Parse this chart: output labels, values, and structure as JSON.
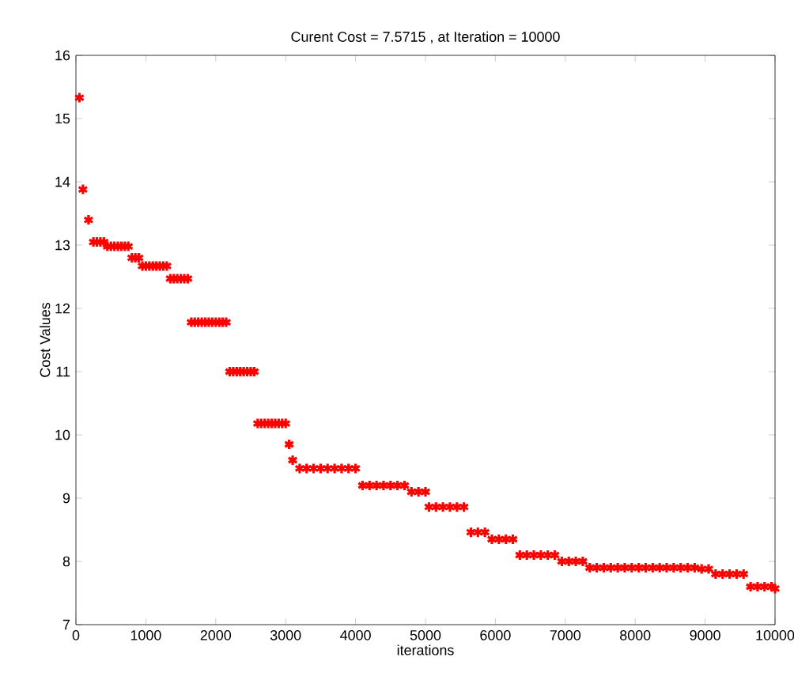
{
  "chart_data": {
    "type": "scatter",
    "title": "Curent Cost = 7.5715 , at Iteration = 10000",
    "xlabel": "iterations",
    "ylabel": "Cost Values",
    "xlim": [
      0,
      10000
    ],
    "ylim": [
      7,
      16
    ],
    "xticks": [
      0,
      1000,
      2000,
      3000,
      4000,
      5000,
      6000,
      7000,
      8000,
      9000,
      10000
    ],
    "yticks": [
      7,
      8,
      9,
      10,
      11,
      12,
      13,
      14,
      15,
      16
    ],
    "marker": "cross",
    "grid": false,
    "legend": false,
    "series": [
      {
        "color": "#ff0000",
        "x": [
          50,
          100,
          180,
          250,
          300,
          350,
          400,
          450,
          500,
          550,
          600,
          650,
          700,
          750,
          800,
          850,
          900,
          950,
          1000,
          1050,
          1100,
          1150,
          1200,
          1250,
          1300,
          1350,
          1400,
          1450,
          1500,
          1550,
          1600,
          1650,
          1700,
          1750,
          1800,
          1850,
          1900,
          1950,
          2000,
          2050,
          2100,
          2150,
          2200,
          2250,
          2300,
          2350,
          2400,
          2450,
          2500,
          2550,
          2600,
          2650,
          2700,
          2750,
          2800,
          2850,
          2900,
          2950,
          3000,
          3050,
          3100,
          3200,
          3300,
          3400,
          3500,
          3600,
          3700,
          3800,
          3900,
          4000,
          4100,
          4200,
          4300,
          4400,
          4500,
          4600,
          4700,
          4800,
          4900,
          5000,
          5050,
          5150,
          5250,
          5350,
          5450,
          5550,
          5650,
          5750,
          5850,
          5950,
          6050,
          6150,
          6250,
          6350,
          6450,
          6550,
          6650,
          6750,
          6850,
          6950,
          7050,
          7150,
          7250,
          7350,
          7450,
          7550,
          7650,
          7750,
          7850,
          7950,
          8050,
          8150,
          8250,
          8350,
          8450,
          8550,
          8650,
          8750,
          8850,
          8950,
          9050,
          9150,
          9250,
          9350,
          9450,
          9550,
          9650,
          9750,
          9850,
          9950,
          10000
        ],
        "values": [
          15.33,
          13.88,
          13.4,
          13.05,
          13.05,
          13.05,
          13.05,
          12.98,
          12.98,
          12.98,
          12.98,
          12.98,
          12.98,
          12.98,
          12.8,
          12.8,
          12.8,
          12.67,
          12.67,
          12.67,
          12.67,
          12.67,
          12.67,
          12.67,
          12.67,
          12.47,
          12.47,
          12.47,
          12.47,
          12.47,
          12.47,
          11.78,
          11.78,
          11.78,
          11.78,
          11.78,
          11.78,
          11.78,
          11.78,
          11.78,
          11.78,
          11.78,
          11.0,
          11.0,
          11.0,
          11.0,
          11.0,
          11.0,
          11.0,
          11.0,
          10.18,
          10.18,
          10.18,
          10.18,
          10.18,
          10.18,
          10.18,
          10.18,
          10.18,
          9.85,
          9.6,
          9.47,
          9.47,
          9.47,
          9.47,
          9.47,
          9.47,
          9.47,
          9.47,
          9.47,
          9.2,
          9.2,
          9.2,
          9.2,
          9.2,
          9.2,
          9.2,
          9.1,
          9.1,
          9.1,
          8.86,
          8.86,
          8.86,
          8.86,
          8.86,
          8.86,
          8.46,
          8.46,
          8.46,
          8.35,
          8.35,
          8.35,
          8.35,
          8.1,
          8.1,
          8.1,
          8.1,
          8.1,
          8.1,
          8.0,
          8.0,
          8.0,
          8.0,
          7.9,
          7.9,
          7.9,
          7.9,
          7.9,
          7.9,
          7.9,
          7.9,
          7.9,
          7.9,
          7.9,
          7.9,
          7.9,
          7.9,
          7.9,
          7.9,
          7.88,
          7.88,
          7.8,
          7.8,
          7.8,
          7.8,
          7.8,
          7.6,
          7.6,
          7.6,
          7.6,
          7.57
        ]
      }
    ]
  }
}
